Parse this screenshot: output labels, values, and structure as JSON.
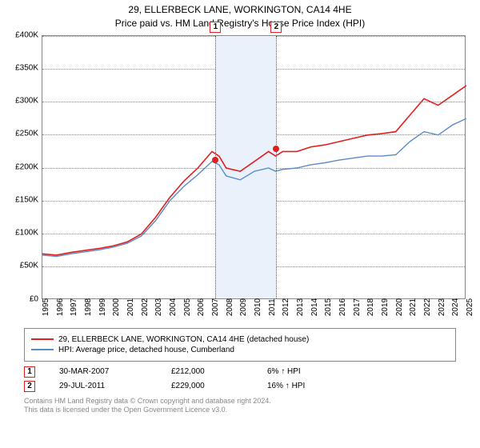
{
  "title": "29, ELLERBECK LANE, WORKINGTON, CA14 4HE",
  "subtitle": "Price paid vs. HM Land Registry's House Price Index (HPI)",
  "chart": {
    "type": "line",
    "background_color": "#ffffff",
    "grid_color": "#888888",
    "shade_color": "#eaf1fa",
    "xlim": [
      1995,
      2025
    ],
    "ylim": [
      0,
      400000
    ],
    "ytick_step": 50000,
    "y_ticks": [
      "£0",
      "£50K",
      "£100K",
      "£150K",
      "£200K",
      "£250K",
      "£300K",
      "£350K",
      "£400K"
    ],
    "x_ticks": [
      "1995",
      "1996",
      "1997",
      "1998",
      "1999",
      "2000",
      "2001",
      "2002",
      "2003",
      "2004",
      "2005",
      "2006",
      "2007",
      "2008",
      "2009",
      "2010",
      "2011",
      "2012",
      "2013",
      "2014",
      "2015",
      "2016",
      "2017",
      "2018",
      "2019",
      "2020",
      "2021",
      "2022",
      "2023",
      "2024",
      "2025"
    ],
    "series": [
      {
        "name": "property",
        "color": "#e02020",
        "line_width": 1.6,
        "points": [
          [
            1995,
            70000
          ],
          [
            1996,
            68000
          ],
          [
            1997,
            72000
          ],
          [
            1998,
            75000
          ],
          [
            1999,
            78000
          ],
          [
            2000,
            82000
          ],
          [
            2001,
            88000
          ],
          [
            2002,
            100000
          ],
          [
            2003,
            125000
          ],
          [
            2004,
            155000
          ],
          [
            2005,
            180000
          ],
          [
            2006,
            200000
          ],
          [
            2007,
            225000
          ],
          [
            2007.5,
            218000
          ],
          [
            2008,
            200000
          ],
          [
            2009,
            195000
          ],
          [
            2010,
            210000
          ],
          [
            2011,
            225000
          ],
          [
            2011.5,
            218000
          ],
          [
            2012,
            225000
          ],
          [
            2013,
            225000
          ],
          [
            2014,
            232000
          ],
          [
            2015,
            235000
          ],
          [
            2016,
            240000
          ],
          [
            2017,
            245000
          ],
          [
            2018,
            250000
          ],
          [
            2019,
            252000
          ],
          [
            2020,
            255000
          ],
          [
            2021,
            280000
          ],
          [
            2022,
            305000
          ],
          [
            2023,
            295000
          ],
          [
            2024,
            310000
          ],
          [
            2025,
            325000
          ]
        ]
      },
      {
        "name": "hpi",
        "color": "#5a8bc9",
        "line_width": 1.4,
        "points": [
          [
            1995,
            68000
          ],
          [
            1996,
            66000
          ],
          [
            1997,
            70000
          ],
          [
            1998,
            73000
          ],
          [
            1999,
            76000
          ],
          [
            2000,
            80000
          ],
          [
            2001,
            86000
          ],
          [
            2002,
            97000
          ],
          [
            2003,
            120000
          ],
          [
            2004,
            150000
          ],
          [
            2005,
            172000
          ],
          [
            2006,
            190000
          ],
          [
            2007,
            210000
          ],
          [
            2007.5,
            205000
          ],
          [
            2008,
            188000
          ],
          [
            2009,
            182000
          ],
          [
            2010,
            195000
          ],
          [
            2011,
            200000
          ],
          [
            2011.5,
            195000
          ],
          [
            2012,
            198000
          ],
          [
            2013,
            200000
          ],
          [
            2014,
            205000
          ],
          [
            2015,
            208000
          ],
          [
            2016,
            212000
          ],
          [
            2017,
            215000
          ],
          [
            2018,
            218000
          ],
          [
            2019,
            218000
          ],
          [
            2020,
            220000
          ],
          [
            2021,
            240000
          ],
          [
            2022,
            255000
          ],
          [
            2023,
            250000
          ],
          [
            2024,
            265000
          ],
          [
            2025,
            275000
          ]
        ]
      }
    ],
    "shade_range": [
      2007.25,
      2011.55
    ],
    "sale_markers": [
      {
        "id": "1",
        "year": 2007.25,
        "price": 212000,
        "color": "#e02020"
      },
      {
        "id": "2",
        "year": 2011.55,
        "price": 229000,
        "color": "#e02020"
      }
    ],
    "marker_box_color": "#e02020"
  },
  "legend": {
    "items": [
      {
        "color": "#e02020",
        "label": "29, ELLERBECK LANE, WORKINGTON, CA14 4HE (detached house)"
      },
      {
        "color": "#5a8bc9",
        "label": "HPI: Average price, detached house, Cumberland"
      }
    ]
  },
  "sales": [
    {
      "id": "1",
      "date": "30-MAR-2007",
      "price": "£212,000",
      "delta": "6% ↑ HPI",
      "color": "#e02020"
    },
    {
      "id": "2",
      "date": "29-JUL-2011",
      "price": "£229,000",
      "delta": "16% ↑ HPI",
      "color": "#e02020"
    }
  ],
  "footer_line1": "Contains HM Land Registry data © Crown copyright and database right 2024.",
  "footer_line2": "This data is licensed under the Open Government Licence v3.0."
}
